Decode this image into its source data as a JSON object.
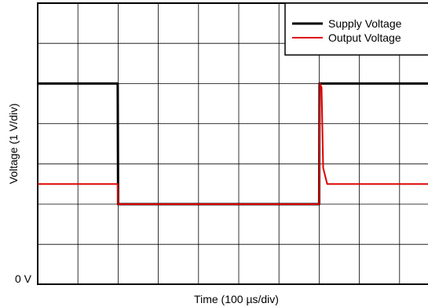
{
  "chart_data": {
    "type": "line",
    "xlabel": "Time (100 µs/div)",
    "ylabel": "Voltage (1 V/div)",
    "y_zero_label": "0 V",
    "xlim": [
      0,
      10
    ],
    "ylim": [
      0,
      7
    ],
    "grid": true,
    "legend_position": "top-right",
    "series": [
      {
        "name": "Supply Voltage",
        "color": "#000000",
        "x": [
          0,
          1.99,
          2.0,
          7.0,
          7.01,
          10
        ],
        "y": [
          5,
          5,
          2,
          2,
          5,
          5
        ]
      },
      {
        "name": "Output Voltage",
        "color": "#dd0000",
        "x": [
          0,
          1.99,
          2.0,
          7.0,
          7.02,
          7.06,
          7.1,
          7.2,
          10
        ],
        "y": [
          2.5,
          2.5,
          2,
          2,
          5,
          4.9,
          2.9,
          2.5,
          2.5
        ]
      }
    ]
  }
}
